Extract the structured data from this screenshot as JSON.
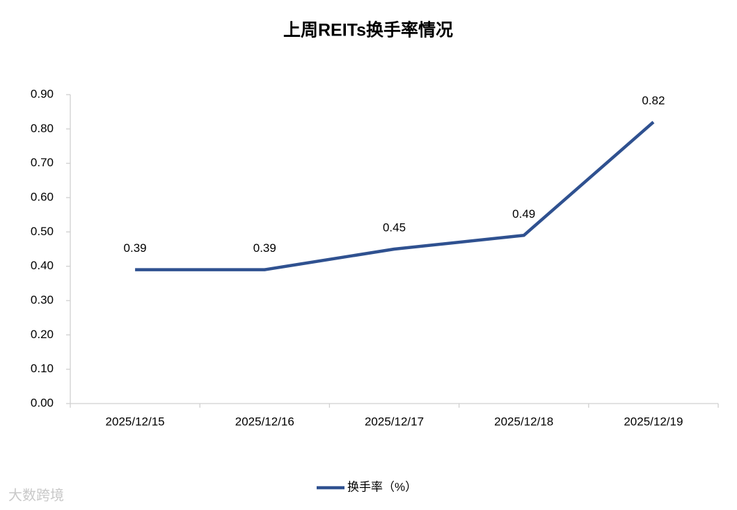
{
  "chart_data": {
    "type": "line",
    "title": "上周REITs换手率情况",
    "categories": [
      "2025/12/15",
      "2025/12/16",
      "2025/12/17",
      "2025/12/18",
      "2025/12/19"
    ],
    "series": [
      {
        "name": "换手率（%）",
        "color": "#2f5190",
        "values": [
          0.39,
          0.39,
          0.45,
          0.49,
          0.82
        ]
      }
    ],
    "ylim": [
      0,
      0.9
    ],
    "yticks": [
      {
        "value": 0,
        "label": "0.00"
      },
      {
        "value": 0.1,
        "label": "0.10"
      },
      {
        "value": 0.2,
        "label": "0.20"
      },
      {
        "value": 0.3,
        "label": "0.30"
      },
      {
        "value": 0.4,
        "label": "0.40"
      },
      {
        "value": 0.5,
        "label": "0.50"
      },
      {
        "value": 0.6,
        "label": "0.60"
      },
      {
        "value": 0.7,
        "label": "0.70"
      },
      {
        "value": 0.8,
        "label": "0.80"
      },
      {
        "value": 0.9,
        "label": "0.90"
      }
    ],
    "grid": false,
    "legend": "bottom",
    "watermark": "大数跨境"
  }
}
